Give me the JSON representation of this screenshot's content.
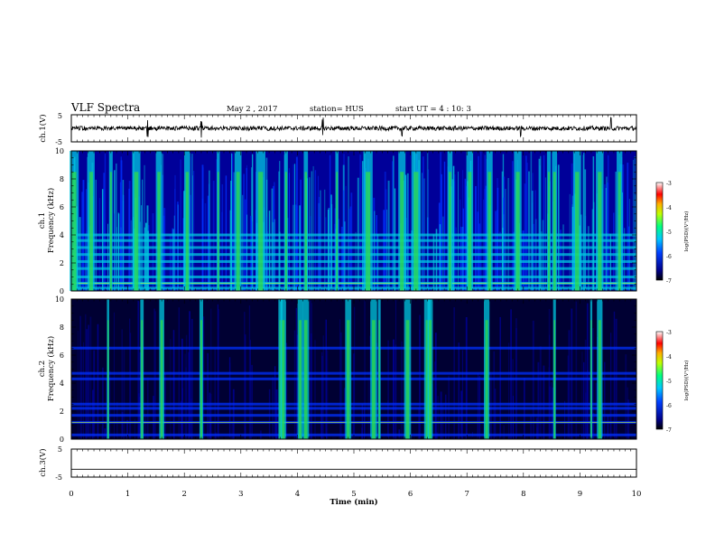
{
  "header": {
    "title": "VLF Spectra",
    "date": "May 2 , 2017",
    "station": "station= HUS",
    "start": "start  UT =   4 : 10: 3"
  },
  "chart_data": [
    {
      "type": "line",
      "panel": "ch1-waveform",
      "ylabel": "ch.1(V)",
      "ylim": [
        -5,
        5
      ],
      "yticks": [
        "5",
        "-5"
      ],
      "xlim": [
        0,
        10
      ],
      "trace_color": "#000000",
      "spikes_min": [
        1.35,
        2.3,
        4.45,
        5.85,
        7.95,
        9.55
      ]
    },
    {
      "type": "heatmap",
      "panel": "ch1-spectrogram",
      "ylabel": "ch.1",
      "ylabel2": "Frequency (kHz)",
      "ylim": [
        0,
        10
      ],
      "yticks": [
        "0",
        "2",
        "4",
        "6",
        "8",
        "10"
      ],
      "xlim": [
        0,
        10
      ],
      "colorbar": {
        "label": "log(PSD)(V²/Hz)",
        "range": [
          -7,
          -3
        ],
        "ticks": [
          "-3",
          "-4",
          "-5",
          "-6",
          "-7"
        ]
      },
      "burst_min": [
        0.05,
        0.35,
        0.7,
        1.15,
        1.55,
        2.05,
        2.6,
        2.95,
        3.35,
        3.8,
        4.15,
        4.7,
        5.25,
        5.85,
        6.1,
        6.7,
        7.05,
        7.4,
        7.9,
        8.45,
        8.55,
        8.95,
        9.35,
        9.7
      ],
      "band_khz": [
        0.2,
        0.55,
        1.0,
        1.6,
        2.1,
        2.6,
        3.1,
        3.6,
        4.0
      ]
    },
    {
      "type": "heatmap",
      "panel": "ch2-spectrogram",
      "ylabel": "ch.2",
      "ylabel2": "Frequency (kHz)",
      "ylim": [
        0,
        10
      ],
      "yticks": [
        "0",
        "2",
        "4",
        "6",
        "8",
        "10"
      ],
      "xlim": [
        0,
        10
      ],
      "colorbar": {
        "label": "log(PSD)(V²/Hz)",
        "range": [
          -7,
          -3
        ],
        "ticks": [
          "-3",
          "-4",
          "-5",
          "-6",
          "-7"
        ]
      },
      "burst_min": [
        0.65,
        1.25,
        1.6,
        2.3,
        3.7,
        3.75,
        4.05,
        4.15,
        4.9,
        5.35,
        5.45,
        5.95,
        6.3,
        6.35,
        7.35,
        8.55,
        9.2,
        9.35
      ],
      "band_khz": [
        0.3,
        1.2,
        1.7,
        2.2,
        2.5,
        4.3,
        4.7,
        6.5
      ]
    },
    {
      "type": "line",
      "panel": "ch3-waveform",
      "ylabel": "ch.3(V)",
      "ylim": [
        -5,
        5
      ],
      "yticks": [
        "5",
        "-5"
      ],
      "xlim": [
        0,
        10
      ],
      "value": -2.2,
      "trace_color": "#000000"
    },
    {
      "type": "axis",
      "panel": "time-axis",
      "xlabel": "Time  (min)",
      "xlim": [
        0,
        10
      ],
      "xticks": [
        "0",
        "1",
        "2",
        "3",
        "4",
        "5",
        "6",
        "7",
        "8",
        "9",
        "10"
      ]
    }
  ],
  "colors": {
    "dark_navy": "#000033",
    "deep_blue": "#000099",
    "blue": "#0030ff",
    "cyan": "#00c8e0",
    "green": "#30e040",
    "yellow": "#e8e000",
    "red": "#ff0000",
    "band_yellow": "#c8ff40"
  }
}
